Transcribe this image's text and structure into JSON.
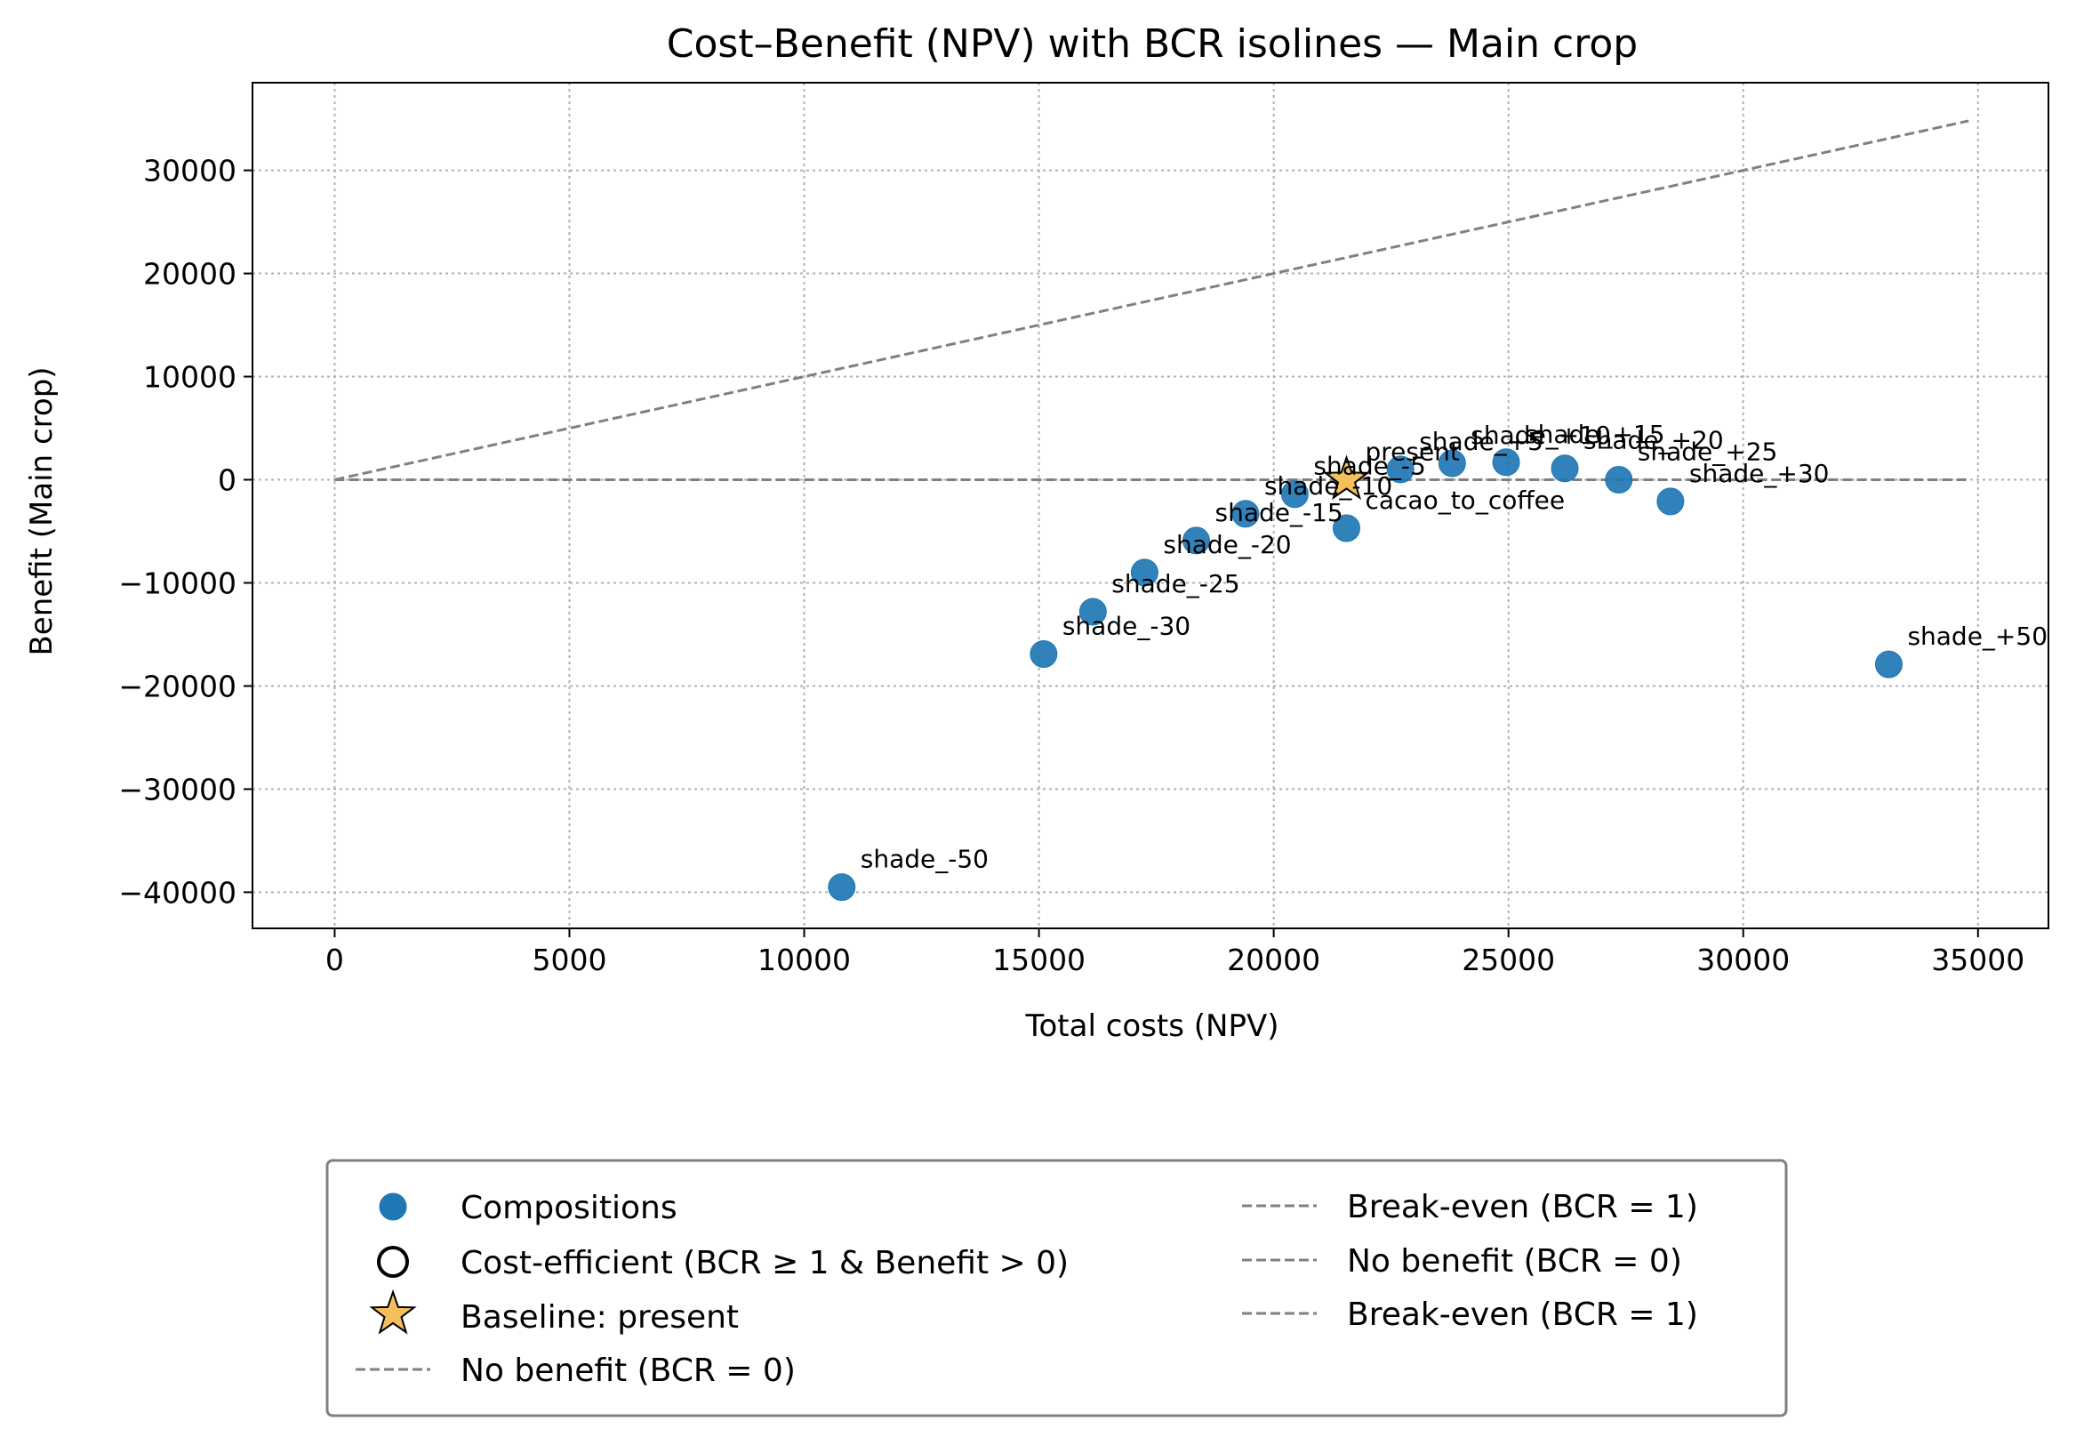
{
  "chart_data": {
    "type": "scatter",
    "title": "Cost–Benefit (NPV) with BCR isolines — Main crop",
    "xlabel": "Total costs (NPV)",
    "ylabel": "Benefit (Main crop)",
    "xlim": [
      -1750,
      36500
    ],
    "ylim": [
      -43500,
      38500
    ],
    "xticks": [
      0,
      5000,
      10000,
      15000,
      20000,
      25000,
      30000,
      35000
    ],
    "yticks": [
      -40000,
      -30000,
      -20000,
      -10000,
      0,
      10000,
      20000,
      30000
    ],
    "xtick_labels": [
      "0",
      "5000",
      "10000",
      "15000",
      "20000",
      "25000",
      "30000",
      "35000"
    ],
    "ytick_labels": [
      "−40000",
      "−30000",
      "−20000",
      "−10000",
      "0",
      "10000",
      "20000",
      "30000"
    ],
    "grid": true,
    "legend_position": "below",
    "colors": {
      "points": "#1f77b4",
      "baseline": "#f5c05c",
      "isoline": "#808080"
    },
    "points": [
      {
        "label": "shade_-50",
        "x": 10800,
        "y": -39500
      },
      {
        "label": "shade_-30",
        "x": 15100,
        "y": -16900
      },
      {
        "label": "shade_-25",
        "x": 16150,
        "y": -12800
      },
      {
        "label": "shade_-20",
        "x": 17250,
        "y": -9000
      },
      {
        "label": "shade_-15",
        "x": 18350,
        "y": -5900
      },
      {
        "label": "shade_-10",
        "x": 19400,
        "y": -3300
      },
      {
        "label": "shade_-5",
        "x": 20450,
        "y": -1400
      },
      {
        "label": "cacao_to_coffee",
        "x": 21550,
        "y": -4700
      },
      {
        "label": "shade_+5",
        "x": 22700,
        "y": 1000
      },
      {
        "label": "shade_+10",
        "x": 23800,
        "y": 1600
      },
      {
        "label": "shade_+15",
        "x": 24950,
        "y": 1700
      },
      {
        "label": "shade_+20",
        "x": 26200,
        "y": 1100
      },
      {
        "label": "shade_+25",
        "x": 27350,
        "y": 0
      },
      {
        "label": "shade_+30",
        "x": 28450,
        "y": -2100
      },
      {
        "label": "shade_+50",
        "x": 33100,
        "y": -17900
      }
    ],
    "baseline": {
      "label": "present",
      "x": 21550,
      "y": 0
    },
    "isolines": [
      {
        "name": "Break-even (BCR = 1)",
        "slope": 1,
        "x": [
          0,
          34800
        ]
      },
      {
        "name": "No benefit (BCR = 0)",
        "slope": 0,
        "x": [
          0,
          34800
        ]
      }
    ],
    "legend": {
      "left": [
        "Compositions",
        "Cost-efficient (BCR ≥ 1 & Benefit > 0)",
        "Baseline: present",
        "No benefit (BCR = 0)"
      ],
      "right": [
        "Break-even (BCR = 1)",
        "No benefit (BCR = 0)",
        "Break-even (BCR = 1)"
      ]
    }
  }
}
